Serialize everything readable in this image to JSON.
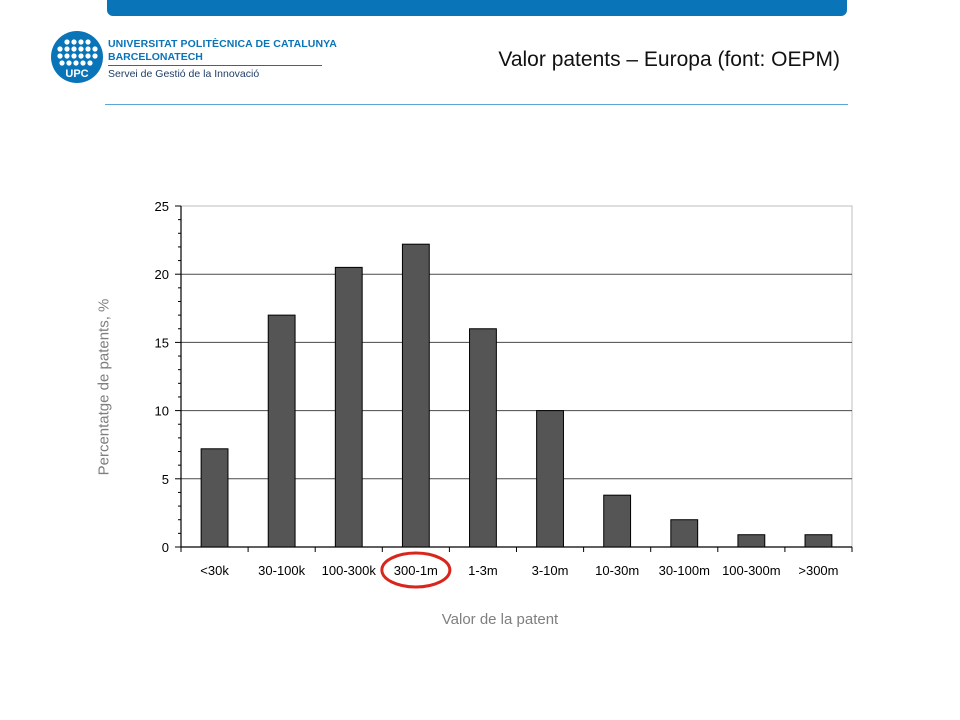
{
  "header": {
    "title": "Valor patents – Europa (font: OEPM)",
    "logo": {
      "mark_text": "UPC",
      "line1": "UNIVERSITAT POLITÈCNICA DE CATALUNYA",
      "line2": "BARCELONATECH",
      "line3": "Servei de Gestió de la Innovació"
    }
  },
  "colors": {
    "brand_blue": "#0a74b8",
    "bar_fill": "#555555",
    "highlight_circle": "#d9261c"
  },
  "chart_data": {
    "type": "bar",
    "categories": [
      "<30k",
      "30-100k",
      "100-300k",
      "300-1m",
      "1-3m",
      "3-10m",
      "10-30m",
      "30-100m",
      "100-300m",
      ">300m"
    ],
    "values": [
      7.2,
      17.0,
      20.5,
      22.2,
      16.0,
      10.0,
      3.8,
      2.0,
      0.9,
      0.9
    ],
    "ylim": [
      0,
      25
    ],
    "yticks": [
      0,
      5,
      10,
      15,
      20,
      25
    ],
    "xlabel": "Valor de la patent",
    "ylabel": "Percentatge de patents, %",
    "grid": true,
    "highlighted_category": "300-1m"
  }
}
